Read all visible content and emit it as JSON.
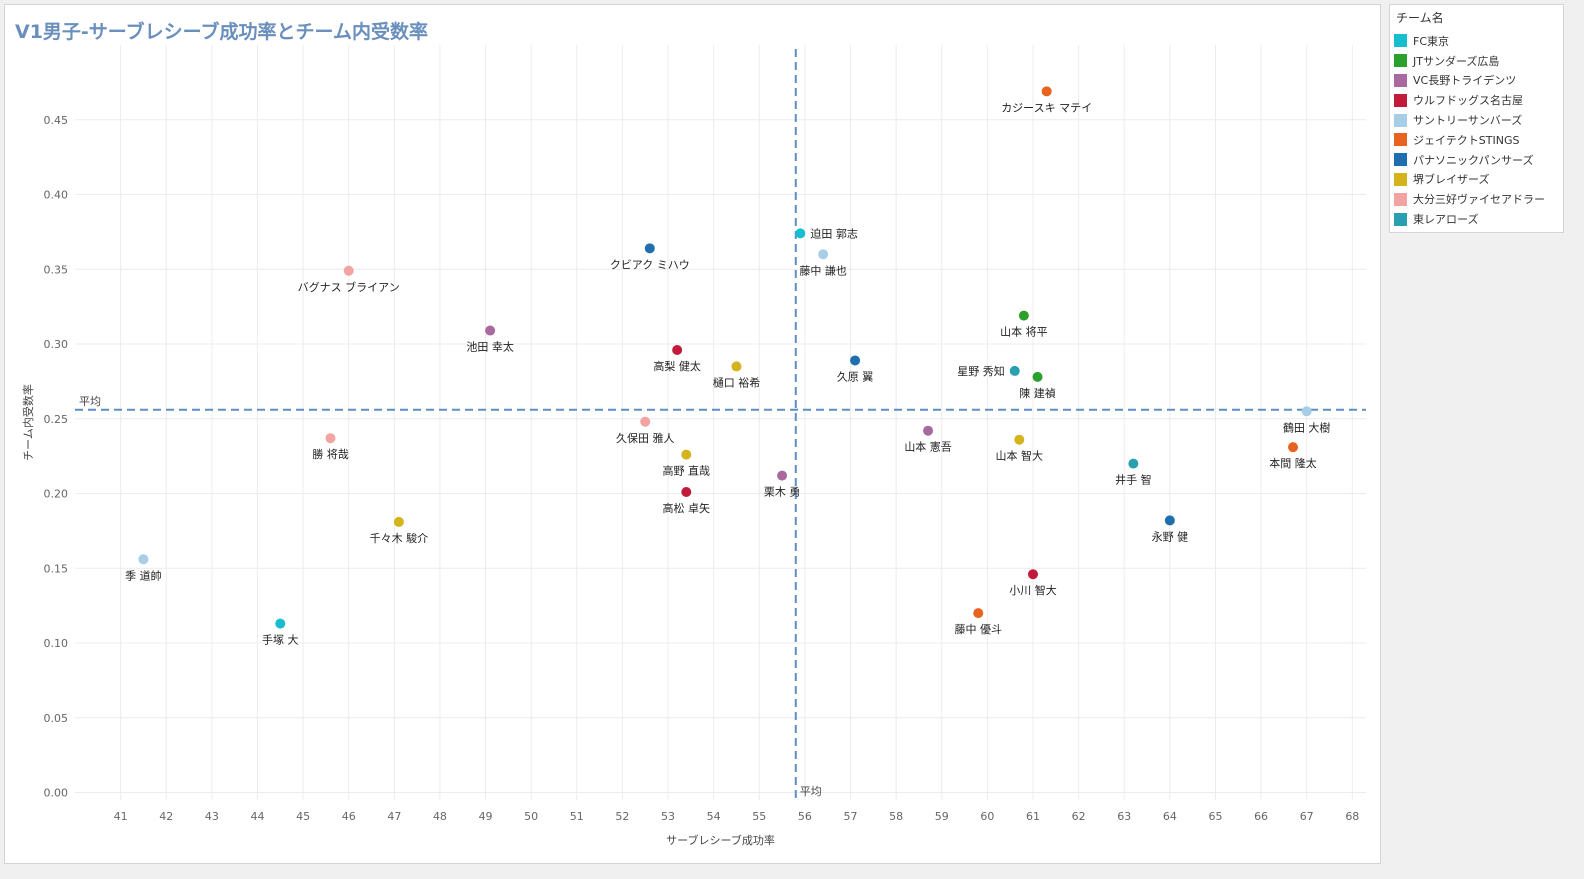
{
  "title": "V1男子-サーブレシーブ成功率とチーム内受数率",
  "legend": {
    "title": "チーム名",
    "items": [
      {
        "label": "FC東京",
        "color": "#17becf"
      },
      {
        "label": "JTサンダーズ広島",
        "color": "#2ca02c"
      },
      {
        "label": "VC長野トライデンツ",
        "color": "#a86a9e"
      },
      {
        "label": "ウルフドッグス名古屋",
        "color": "#c21a3a"
      },
      {
        "label": "サントリーサンバーズ",
        "color": "#a8cde6"
      },
      {
        "label": "ジェイテクトSTINGS",
        "color": "#e8631f"
      },
      {
        "label": "パナソニックパンサーズ",
        "color": "#1f6fb0"
      },
      {
        "label": "堺ブレイザーズ",
        "color": "#d4b31c"
      },
      {
        "label": "大分三好ヴァイセアドラー",
        "color": "#f4a3a3"
      },
      {
        "label": "東レアローズ",
        "color": "#2a9fb0"
      }
    ]
  },
  "chart_data": {
    "type": "scatter",
    "xlabel": "サーブレシーブ成功率",
    "ylabel": "チーム内受数率",
    "xlim": [
      40,
      68.3
    ],
    "ylim": [
      -0.005,
      0.5
    ],
    "x_ticks": [
      "41",
      "42",
      "43",
      "44",
      "45",
      "46",
      "47",
      "48",
      "49",
      "50",
      "51",
      "52",
      "53",
      "54",
      "55",
      "56",
      "57",
      "58",
      "59",
      "60",
      "61",
      "62",
      "63",
      "64",
      "65",
      "66",
      "67",
      "68"
    ],
    "y_ticks": [
      "0.00",
      "0.05",
      "0.10",
      "0.15",
      "0.20",
      "0.25",
      "0.30",
      "0.35",
      "0.40",
      "0.45"
    ],
    "grid": true,
    "reference_lines": [
      {
        "axis": "x",
        "value": 55.8,
        "label": "平均"
      },
      {
        "axis": "y",
        "value": 0.256,
        "label": "平均"
      }
    ],
    "points": [
      {
        "name": "カジースキ マテイ",
        "team": "ジェイテクトSTINGS",
        "x": 61.3,
        "y": 0.469,
        "label_pos": "below"
      },
      {
        "name": "迫田 郭志",
        "team": "FC東京",
        "x": 55.9,
        "y": 0.374,
        "label_pos": "right"
      },
      {
        "name": "クビアク ミハウ",
        "team": "パナソニックパンサーズ",
        "x": 52.6,
        "y": 0.364,
        "label_pos": "below"
      },
      {
        "name": "藤中 謙也",
        "team": "サントリーサンバーズ",
        "x": 56.4,
        "y": 0.36,
        "label_pos": "below"
      },
      {
        "name": "バグナス ブライアン",
        "team": "大分三好ヴァイセアドラー",
        "x": 46.0,
        "y": 0.349,
        "label_pos": "below"
      },
      {
        "name": "山本 将平",
        "team": "JTサンダーズ広島",
        "x": 60.8,
        "y": 0.319,
        "label_pos": "below"
      },
      {
        "name": "池田 幸太",
        "team": "VC長野トライデンツ",
        "x": 49.1,
        "y": 0.309,
        "label_pos": "below"
      },
      {
        "name": "高梨 健太",
        "team": "ウルフドッグス名古屋",
        "x": 53.2,
        "y": 0.296,
        "label_pos": "below"
      },
      {
        "name": "久原 翼",
        "team": "パナソニックパンサーズ",
        "x": 57.1,
        "y": 0.289,
        "label_pos": "below"
      },
      {
        "name": "樋口 裕希",
        "team": "堺ブレイザーズ",
        "x": 54.5,
        "y": 0.285,
        "label_pos": "below"
      },
      {
        "name": "星野 秀知",
        "team": "東レアローズ",
        "x": 60.6,
        "y": 0.282,
        "label_pos": "left"
      },
      {
        "name": "陳 建禎",
        "team": "JTサンダーズ広島",
        "x": 61.1,
        "y": 0.278,
        "label_pos": "below"
      },
      {
        "name": "鶴田 大樹",
        "team": "サントリーサンバーズ",
        "x": 67.0,
        "y": 0.255,
        "label_pos": "below"
      },
      {
        "name": "久保田 雅人",
        "team": "大分三好ヴァイセアドラー",
        "x": 52.5,
        "y": 0.248,
        "label_pos": "below"
      },
      {
        "name": "山本 憲吾",
        "team": "VC長野トライデンツ",
        "x": 58.7,
        "y": 0.242,
        "label_pos": "below"
      },
      {
        "name": "勝 将哉",
        "team": "大分三好ヴァイセアドラー",
        "x": 45.6,
        "y": 0.237,
        "label_pos": "below"
      },
      {
        "name": "山本 智大",
        "team": "堺ブレイザーズ",
        "x": 60.7,
        "y": 0.236,
        "label_pos": "below"
      },
      {
        "name": "本間 隆太",
        "team": "ジェイテクトSTINGS",
        "x": 66.7,
        "y": 0.231,
        "label_pos": "below"
      },
      {
        "name": "高野 直哉",
        "team": "堺ブレイザーズ",
        "x": 53.4,
        "y": 0.226,
        "label_pos": "below"
      },
      {
        "name": "井手 智",
        "team": "東レアローズ",
        "x": 63.2,
        "y": 0.22,
        "label_pos": "below"
      },
      {
        "name": "栗木 勇",
        "team": "VC長野トライデンツ",
        "x": 55.5,
        "y": 0.212,
        "label_pos": "below"
      },
      {
        "name": "高松 卓矢",
        "team": "ウルフドッグス名古屋",
        "x": 53.4,
        "y": 0.201,
        "label_pos": "below"
      },
      {
        "name": "永野 健",
        "team": "パナソニックパンサーズ",
        "x": 64.0,
        "y": 0.182,
        "label_pos": "below"
      },
      {
        "name": "千々木 駿介",
        "team": "堺ブレイザーズ",
        "x": 47.1,
        "y": 0.181,
        "label_pos": "below"
      },
      {
        "name": "季 道帥",
        "team": "サントリーサンバーズ",
        "x": 41.5,
        "y": 0.156,
        "label_pos": "below"
      },
      {
        "name": "小川 智大",
        "team": "ウルフドッグス名古屋",
        "x": 61.0,
        "y": 0.146,
        "label_pos": "below"
      },
      {
        "name": "藤中 優斗",
        "team": "ジェイテクトSTINGS",
        "x": 59.8,
        "y": 0.12,
        "label_pos": "below"
      },
      {
        "name": "手塚 大",
        "team": "FC東京",
        "x": 44.5,
        "y": 0.113,
        "label_pos": "below"
      }
    ]
  }
}
